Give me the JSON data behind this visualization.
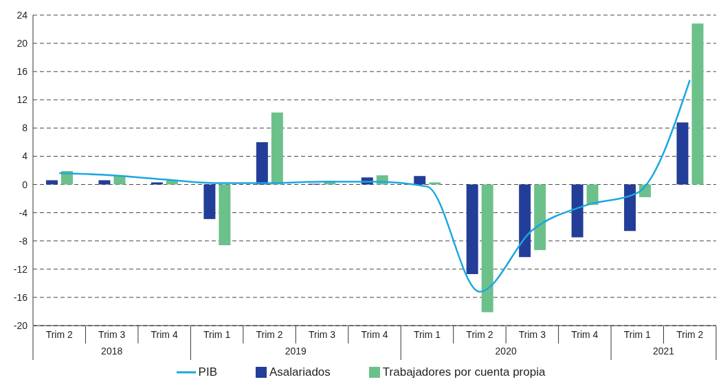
{
  "chart_data": {
    "type": "bar",
    "categories": [
      "Trim 2",
      "Trim 3",
      "Trim 4",
      "Trim 1",
      "Trim 2",
      "Trim 3",
      "Trim 4",
      "Trim 1",
      "Trim 2",
      "Trim 3",
      "Trim 4",
      "Trim 1",
      "Trim 2"
    ],
    "annotations": [
      "2018",
      "2019",
      "2020",
      "2021"
    ],
    "series": [
      {
        "name": "PIB",
        "type": "line",
        "color": "#1ba7e1",
        "values": [
          1.6,
          1.3,
          0.7,
          0.2,
          0.2,
          0.4,
          0.4,
          -0.3,
          -15.2,
          -6.5,
          -3.0,
          -1.2,
          14.8
        ]
      },
      {
        "name": "Asalariados",
        "color": "#233e98",
        "values": [
          0.6,
          0.6,
          0.3,
          -4.9,
          6.0,
          0.1,
          1.0,
          1.2,
          -12.7,
          -10.3,
          -7.5,
          -6.6,
          8.8
        ]
      },
      {
        "name": "Trabajadores por cuenta propia",
        "color": "#6cc18b",
        "values": [
          1.9,
          1.2,
          0.6,
          -8.6,
          10.2,
          0.5,
          1.3,
          0.3,
          -18.1,
          -9.3,
          -2.9,
          -1.8,
          22.8
        ]
      }
    ],
    "ylim": [
      -20,
      24
    ],
    "yticks": [
      -20,
      -16,
      -12,
      -8,
      -4,
      0,
      4,
      8,
      12,
      16,
      20,
      24
    ],
    "grid": "y",
    "line_style": "solid",
    "marker": "none",
    "legend": "bottom"
  }
}
